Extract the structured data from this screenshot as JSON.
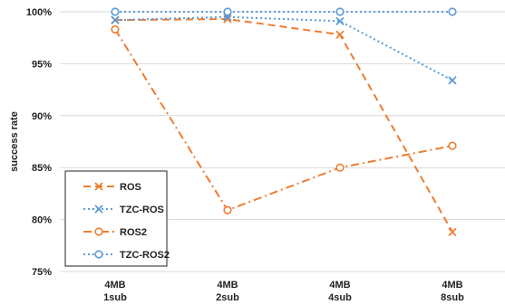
{
  "chart_data": {
    "type": "line",
    "title": "",
    "xlabel": "",
    "ylabel": "success rate",
    "categories": [
      [
        "4MB",
        "1sub"
      ],
      [
        "4MB",
        "2sub"
      ],
      [
        "4MB",
        "4sub"
      ],
      [
        "4MB",
        "8sub"
      ]
    ],
    "ylim": [
      75,
      100
    ],
    "yticks": [
      75,
      80,
      85,
      90,
      95,
      100
    ],
    "ytick_labels": [
      "75%",
      "80%",
      "85%",
      "90%",
      "95%",
      "100%"
    ],
    "grid": "horizontal",
    "legend": "bottom-left",
    "series": [
      {
        "name": "ROS",
        "values": [
          99.2,
          99.3,
          97.8,
          78.8
        ],
        "color": "#ED7D31",
        "dash": "dash",
        "marker": "x"
      },
      {
        "name": "TZC-ROS",
        "values": [
          99.2,
          99.5,
          99.1,
          93.4
        ],
        "color": "#5B9BD5",
        "dash": "dot",
        "marker": "x"
      },
      {
        "name": "ROS2",
        "values": [
          98.3,
          80.9,
          85.0,
          87.1
        ],
        "color": "#ED7D31",
        "dash": "dash-dot",
        "marker": "circle"
      },
      {
        "name": "TZC-ROS2",
        "values": [
          100.0,
          100.0,
          100.0,
          100.0
        ],
        "color": "#5B9BD5",
        "dash": "dot",
        "marker": "circle"
      }
    ]
  }
}
